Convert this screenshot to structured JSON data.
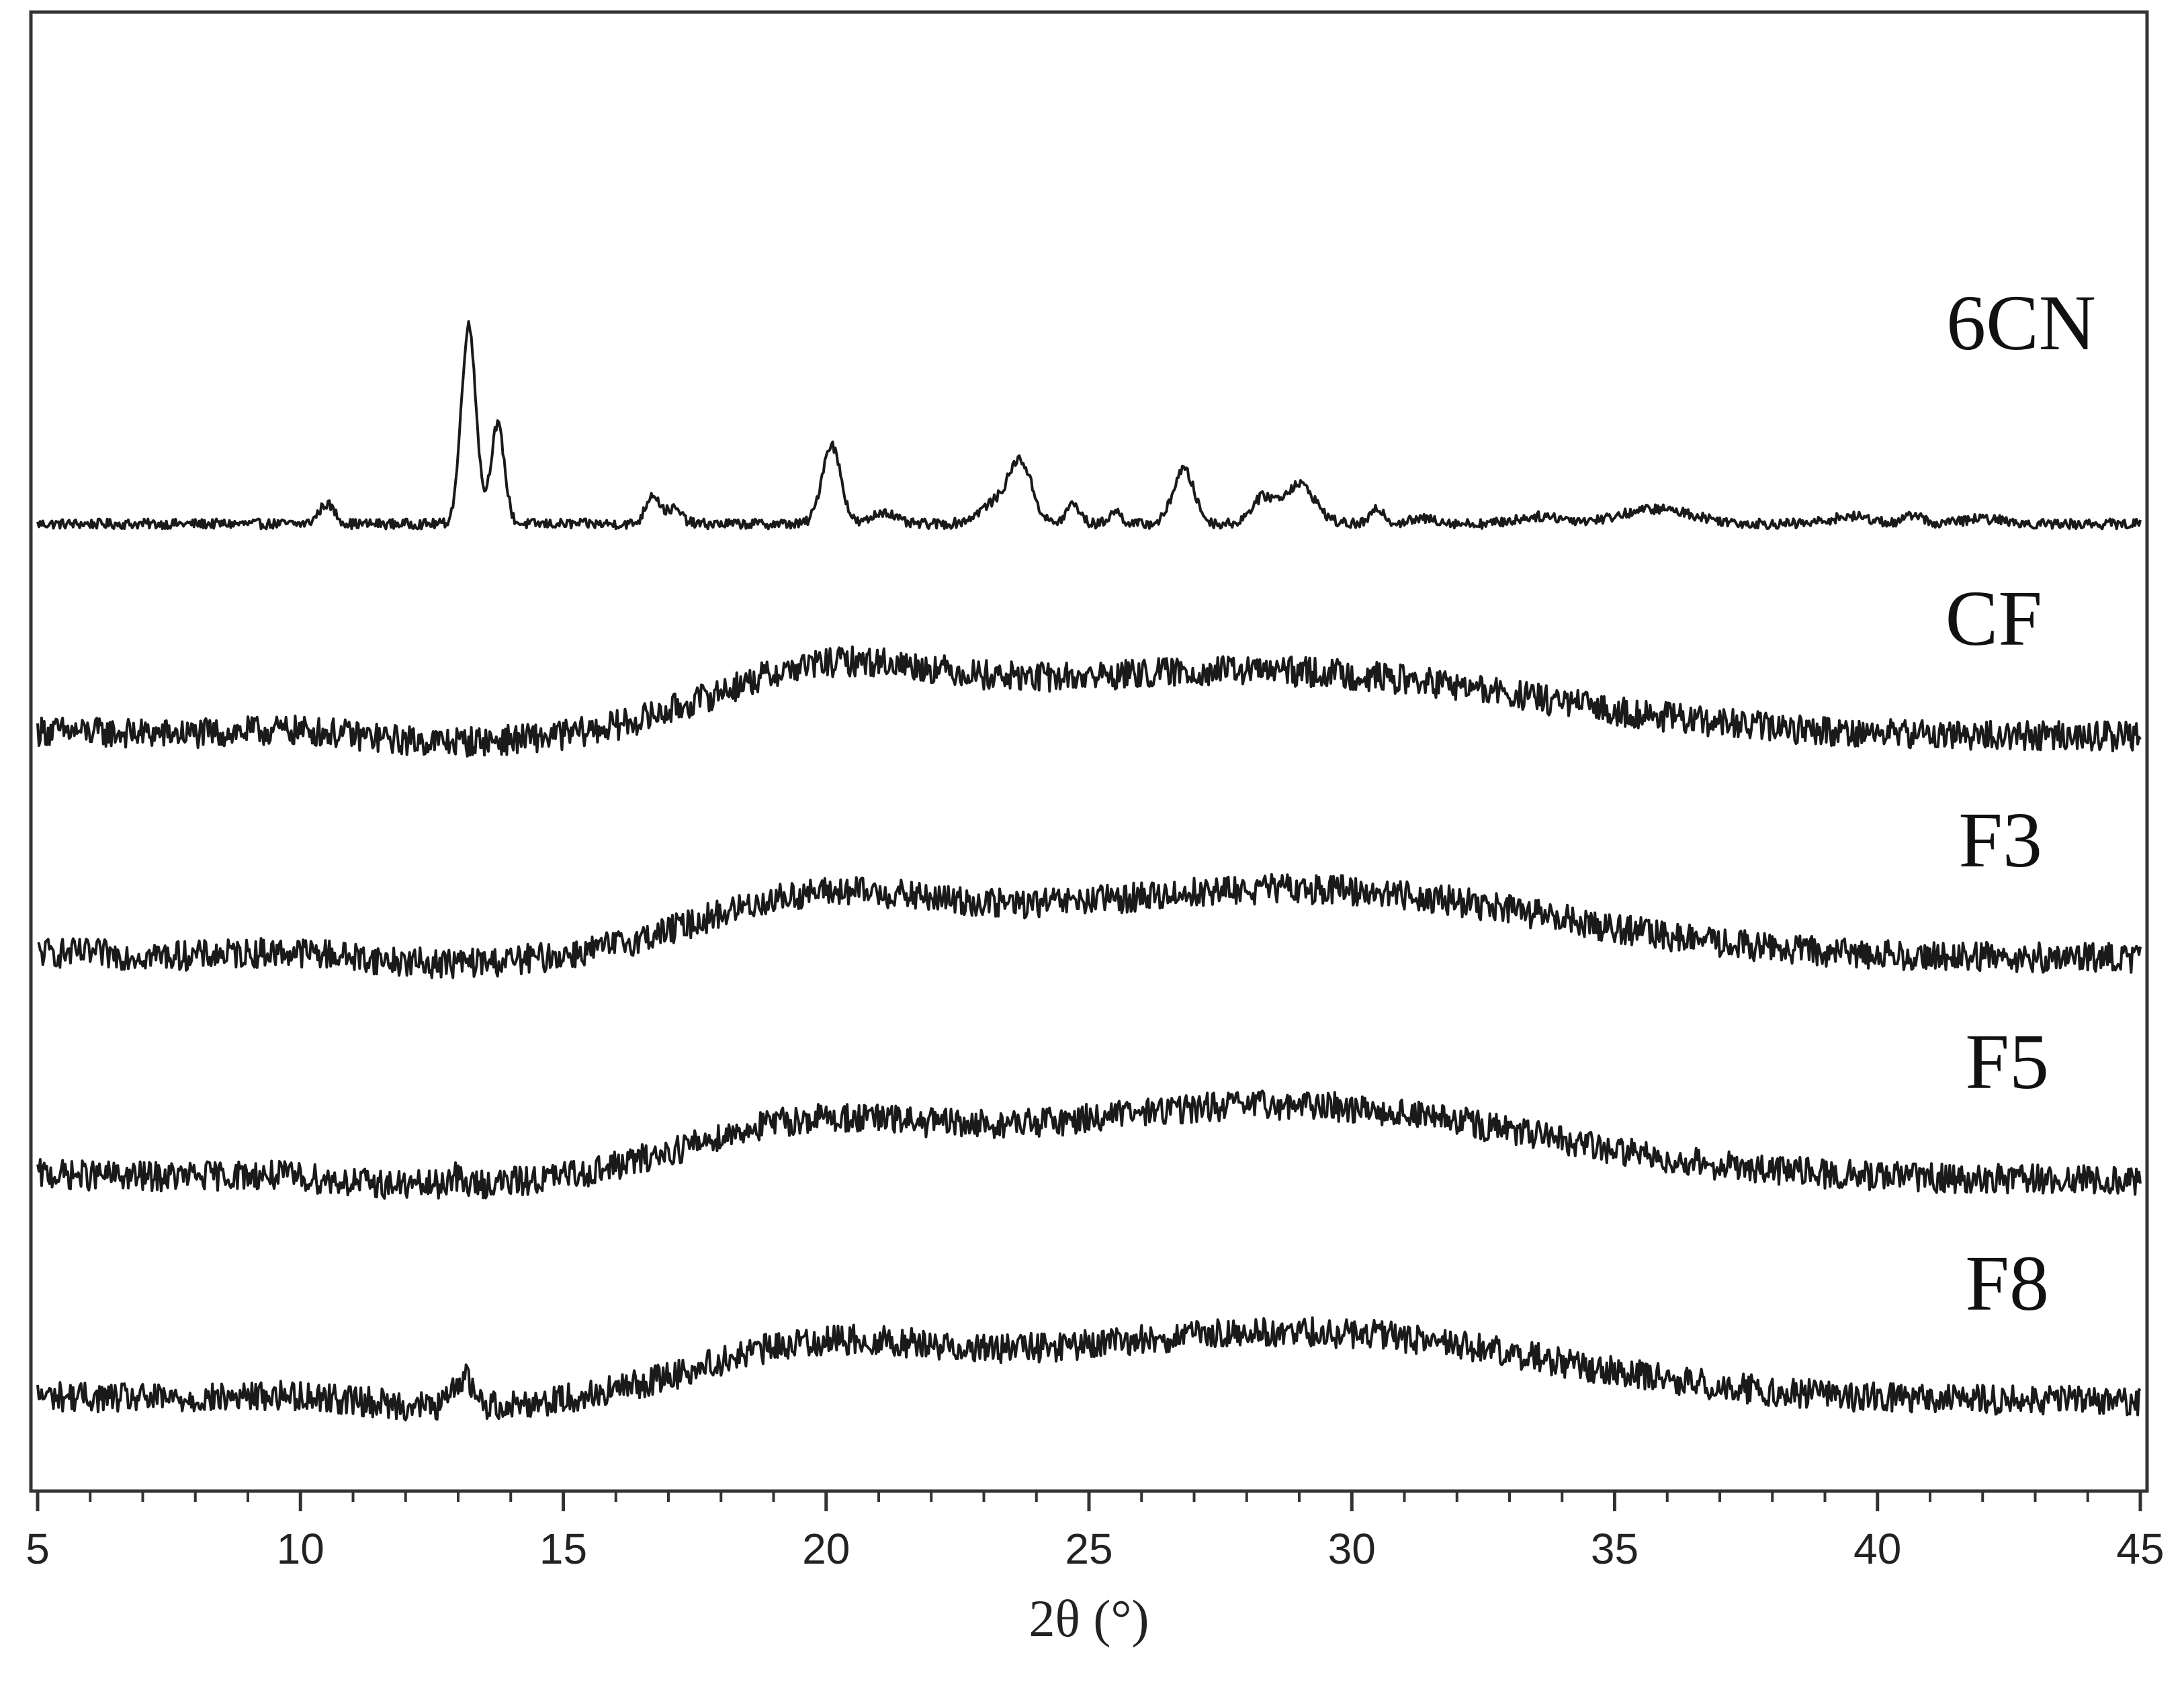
{
  "chart_data": {
    "type": "line",
    "title": "",
    "xlabel": "2θ (°)",
    "ylabel": "",
    "xlim": [
      5,
      45
    ],
    "x_ticks": [
      5,
      10,
      15,
      20,
      25,
      30,
      35,
      40,
      45
    ],
    "x_tick_labels": [
      "5",
      "10",
      "15",
      "20",
      "25",
      "30",
      "35",
      "40",
      "45"
    ],
    "x_minor_step": 1,
    "y_ticks": false,
    "grid": false,
    "legend": "inline-right",
    "offset_traces": true,
    "series": [
      {
        "name": "6CN",
        "offset": 4,
        "baseline": 0.0,
        "noise": 0.02,
        "peaks": [
          {
            "x": 10.5,
            "h": 0.08,
            "w": 0.15
          },
          {
            "x": 13.2,
            "h": 0.8,
            "w": 0.14
          },
          {
            "x": 13.75,
            "h": 0.4,
            "w": 0.13
          },
          {
            "x": 16.7,
            "h": 0.12,
            "w": 0.13
          },
          {
            "x": 17.1,
            "h": 0.06,
            "w": 0.15
          },
          {
            "x": 20.1,
            "h": 0.32,
            "w": 0.18
          },
          {
            "x": 21.1,
            "h": 0.05,
            "w": 0.2
          },
          {
            "x": 23.7,
            "h": 0.24,
            "w": 0.22
          },
          {
            "x": 23.2,
            "h": 0.08,
            "w": 0.3
          },
          {
            "x": 24.7,
            "h": 0.08,
            "w": 0.13
          },
          {
            "x": 25.5,
            "h": 0.05,
            "w": 0.12
          },
          {
            "x": 26.8,
            "h": 0.22,
            "w": 0.2
          },
          {
            "x": 28.3,
            "h": 0.1,
            "w": 0.22
          },
          {
            "x": 29.0,
            "h": 0.16,
            "w": 0.3
          },
          {
            "x": 30.5,
            "h": 0.06,
            "w": 0.13
          },
          {
            "x": 31.4,
            "h": 0.02,
            "w": 0.3
          },
          {
            "x": 33.6,
            "h": 0.03,
            "w": 0.45
          },
          {
            "x": 35.8,
            "h": 0.06,
            "w": 0.7
          },
          {
            "x": 39.5,
            "h": 0.03,
            "w": 0.4
          },
          {
            "x": 40.7,
            "h": 0.04,
            "w": 0.15
          },
          {
            "x": 42.0,
            "h": 0.02,
            "w": 0.4
          }
        ]
      },
      {
        "name": "CF",
        "offset": 3,
        "baseline": 0.12,
        "noise": 0.06,
        "peaks": [
          {
            "x": 10.0,
            "h": 0.04,
            "w": 1.2
          },
          {
            "x": 20.0,
            "h": 0.24,
            "w": 2.2
          },
          {
            "x": 29.0,
            "h": 0.24,
            "w": 4.5
          },
          {
            "x": 24.5,
            "h": 0.05,
            "w": 2.5
          }
        ]
      },
      {
        "name": "F3",
        "offset": 2,
        "baseline": 0.12,
        "noise": 0.06,
        "peaks": [
          {
            "x": 10.0,
            "h": 0.04,
            "w": 1.2
          },
          {
            "x": 19.8,
            "h": 0.22,
            "w": 2.3
          },
          {
            "x": 29.5,
            "h": 0.26,
            "w": 4.3
          },
          {
            "x": 24.5,
            "h": 0.05,
            "w": 2.5
          }
        ]
      },
      {
        "name": "F5",
        "offset": 1,
        "baseline": 0.12,
        "noise": 0.06,
        "peaks": [
          {
            "x": 9.5,
            "h": 0.03,
            "w": 1.2
          },
          {
            "x": 19.6,
            "h": 0.2,
            "w": 2.3
          },
          {
            "x": 29.2,
            "h": 0.28,
            "w": 4.3
          },
          {
            "x": 12.9,
            "h": 0.04,
            "w": 0.1
          },
          {
            "x": 24.5,
            "h": 0.05,
            "w": 2.5
          }
        ]
      },
      {
        "name": "F8",
        "offset": 0,
        "baseline": 0.12,
        "noise": 0.06,
        "peaks": [
          {
            "x": 10.0,
            "h": 0.04,
            "w": 1.2
          },
          {
            "x": 13.1,
            "h": 0.12,
            "w": 0.18
          },
          {
            "x": 19.8,
            "h": 0.2,
            "w": 2.3
          },
          {
            "x": 29.5,
            "h": 0.26,
            "w": 4.3
          },
          {
            "x": 24.5,
            "h": 0.05,
            "w": 2.5
          }
        ]
      }
    ]
  }
}
